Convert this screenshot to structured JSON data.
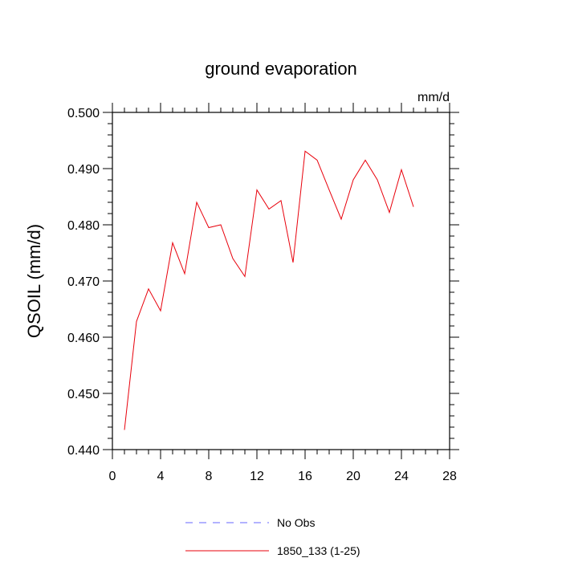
{
  "chart_data": {
    "type": "line",
    "title": "ground evaporation",
    "units_label": "mm/d",
    "xlabel": "",
    "ylabel": "QSOIL  (mm/d)",
    "xlim": [
      0,
      28
    ],
    "ylim": [
      0.44,
      0.5
    ],
    "x_ticks": [
      0,
      4,
      8,
      12,
      16,
      20,
      24,
      28
    ],
    "y_ticks": [
      0.44,
      0.45,
      0.46,
      0.47,
      0.48,
      0.49,
      0.5
    ],
    "x_tick_labels": [
      "0",
      "4",
      "8",
      "12",
      "16",
      "20",
      "24",
      "28"
    ],
    "y_tick_labels": [
      "0.440",
      "0.450",
      "0.460",
      "0.470",
      "0.480",
      "0.490",
      "0.500"
    ],
    "grid": false,
    "legend_position": "bottom-center",
    "series": [
      {
        "name": "1850_133 (1-25)",
        "color": "#e8000b",
        "style": "solid",
        "x": [
          1,
          2,
          3,
          4,
          5,
          6,
          7,
          8,
          9,
          10,
          11,
          12,
          13,
          14,
          15,
          16,
          17,
          18,
          19,
          20,
          21,
          22,
          23,
          24,
          25
        ],
        "y": [
          0.4435,
          0.4628,
          0.4686,
          0.4647,
          0.4768,
          0.4713,
          0.484,
          0.4795,
          0.48,
          0.474,
          0.4708,
          0.4862,
          0.4828,
          0.4843,
          0.4733,
          0.4931,
          0.4915,
          0.4862,
          0.481,
          0.488,
          0.4915,
          0.488,
          0.4822,
          0.4898,
          0.4832
        ]
      }
    ],
    "legend": [
      {
        "label": "No Obs",
        "color": "#6666ff",
        "style": "dashed"
      },
      {
        "label": "1850_133 (1-25)",
        "color": "#e8000b",
        "style": "solid"
      }
    ]
  }
}
